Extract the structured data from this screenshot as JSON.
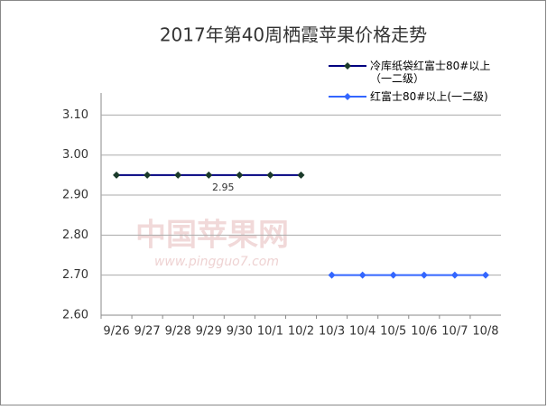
{
  "chart_data": {
    "type": "line",
    "title": "2017年第40周栖霞苹果价格走势",
    "categories": [
      "9/26",
      "9/27",
      "9/28",
      "9/29",
      "9/30",
      "10/1",
      "10/2",
      "10/3",
      "10/4",
      "10/5",
      "10/6",
      "10/7",
      "10/8"
    ],
    "series": [
      {
        "name": "冷库纸袋红富士80#以上（一二级）",
        "color": "#000080",
        "marker_color": "#1a3a2a",
        "values": [
          2.95,
          2.95,
          2.95,
          2.95,
          2.95,
          2.95,
          2.95,
          null,
          null,
          null,
          null,
          null,
          null
        ]
      },
      {
        "name": "红富士80#以上(一二级)",
        "color": "#3366ff",
        "marker_color": "#3366ff",
        "values": [
          null,
          null,
          null,
          null,
          null,
          null,
          null,
          2.7,
          2.7,
          2.7,
          2.7,
          2.7,
          2.7
        ]
      }
    ],
    "data_label_index": 3,
    "ylim": [
      2.6,
      3.155
    ],
    "yticks": [
      {
        "value": 2.6,
        "label": "2.60"
      },
      {
        "value": 2.7,
        "label": "2.70"
      },
      {
        "value": 2.8,
        "label": "2.80"
      },
      {
        "value": 2.9,
        "label": "2.90"
      },
      {
        "value": 3.0,
        "label": "3.00"
      },
      {
        "value": 3.1,
        "label": "3.10"
      }
    ],
    "grid": true,
    "legend": "top-right",
    "watermark": {
      "title": "中国苹果网",
      "url": "www.pingguo7.com"
    }
  }
}
